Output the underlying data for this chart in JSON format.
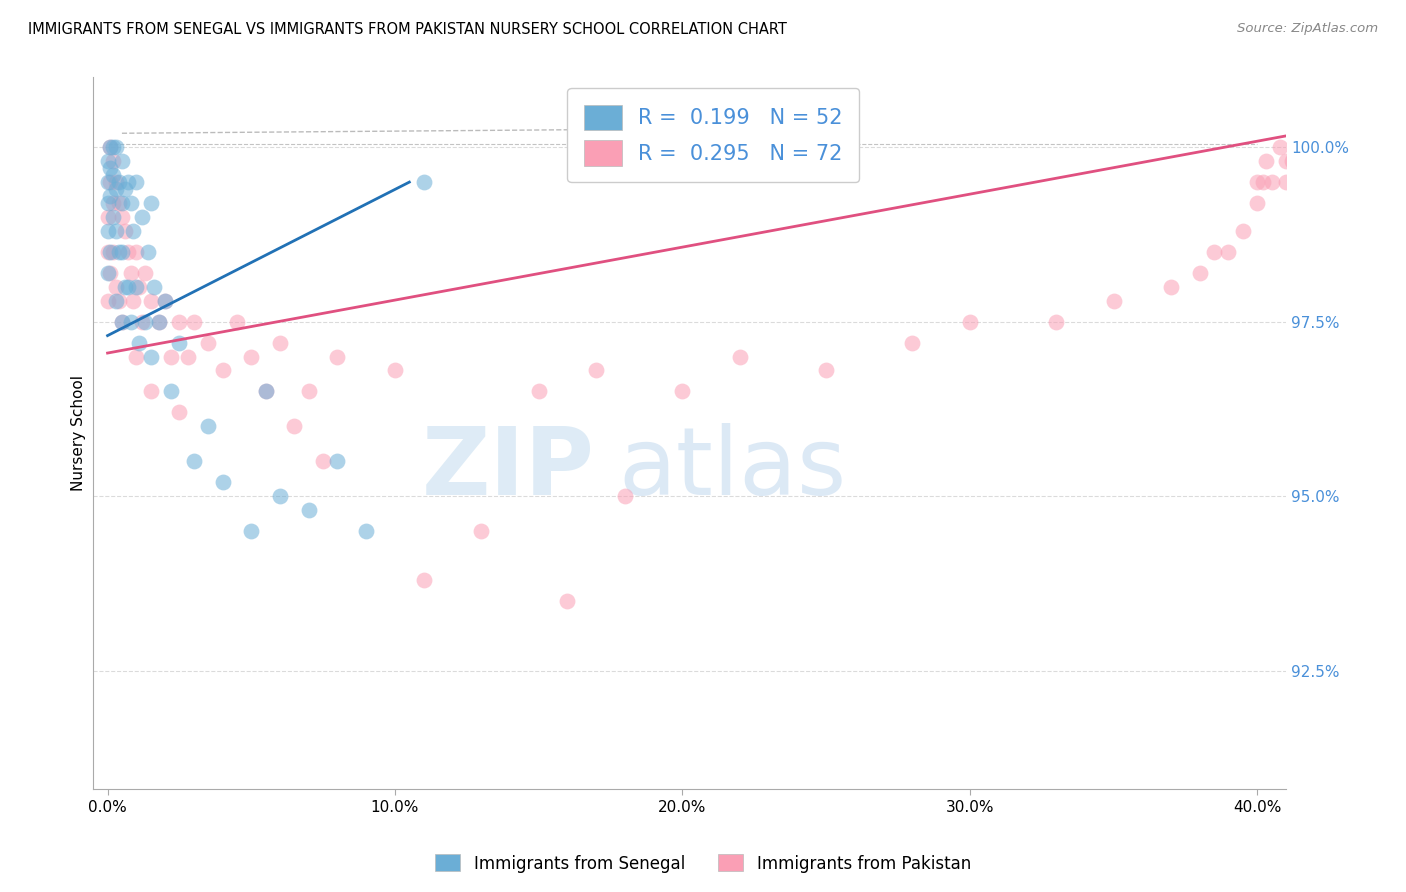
{
  "title": "IMMIGRANTS FROM SENEGAL VS IMMIGRANTS FROM PAKISTAN NURSERY SCHOOL CORRELATION CHART",
  "source": "Source: ZipAtlas.com",
  "ylabel": "Nursery School",
  "xlabel": "",
  "legend_label1": "Immigrants from Senegal",
  "legend_label2": "Immigrants from Pakistan",
  "R1": 0.199,
  "N1": 52,
  "R2": 0.295,
  "N2": 72,
  "color1": "#6baed6",
  "color2": "#fa9fb5",
  "line_color1": "#2171b5",
  "line_color2": "#e05080",
  "xlim": [
    -0.5,
    41.0
  ],
  "ylim": [
    90.8,
    101.0
  ],
  "yticks": [
    92.5,
    95.0,
    97.5,
    100.0
  ],
  "xticks": [
    0.0,
    10.0,
    20.0,
    30.0,
    40.0
  ],
  "watermark_zip": "ZIP",
  "watermark_atlas": "atlas",
  "senegal_x": [
    0.0,
    0.0,
    0.0,
    0.0,
    0.0,
    0.1,
    0.1,
    0.1,
    0.1,
    0.2,
    0.2,
    0.2,
    0.3,
    0.3,
    0.3,
    0.3,
    0.4,
    0.4,
    0.5,
    0.5,
    0.5,
    0.5,
    0.6,
    0.6,
    0.7,
    0.7,
    0.8,
    0.8,
    0.9,
    1.0,
    1.0,
    1.1,
    1.2,
    1.3,
    1.4,
    1.5,
    1.5,
    1.6,
    1.8,
    2.0,
    2.2,
    2.5,
    3.0,
    3.5,
    4.0,
    5.0,
    5.5,
    6.0,
    7.0,
    8.0,
    9.0,
    11.0
  ],
  "senegal_y": [
    99.8,
    99.5,
    99.2,
    98.8,
    98.2,
    100.0,
    99.7,
    99.3,
    98.5,
    100.0,
    99.6,
    99.0,
    100.0,
    99.4,
    98.8,
    97.8,
    99.5,
    98.5,
    99.8,
    99.2,
    98.5,
    97.5,
    99.4,
    98.0,
    99.5,
    98.0,
    99.2,
    97.5,
    98.8,
    99.5,
    98.0,
    97.2,
    99.0,
    97.5,
    98.5,
    99.2,
    97.0,
    98.0,
    97.5,
    97.8,
    96.5,
    97.2,
    95.5,
    96.0,
    95.2,
    94.5,
    96.5,
    95.0,
    94.8,
    95.5,
    94.5,
    99.5
  ],
  "pakistan_x": [
    0.0,
    0.0,
    0.0,
    0.1,
    0.1,
    0.1,
    0.2,
    0.2,
    0.2,
    0.3,
    0.3,
    0.4,
    0.4,
    0.5,
    0.5,
    0.6,
    0.7,
    0.8,
    0.9,
    1.0,
    1.0,
    1.1,
    1.2,
    1.3,
    1.5,
    1.5,
    1.8,
    2.0,
    2.2,
    2.5,
    2.5,
    2.8,
    3.0,
    3.5,
    4.0,
    4.5,
    5.0,
    5.5,
    6.0,
    6.5,
    7.0,
    7.5,
    8.0,
    10.0,
    11.0,
    13.0,
    15.0,
    16.0,
    17.0,
    18.0,
    20.0,
    22.0,
    25.0,
    28.0,
    30.0,
    33.0,
    35.0,
    37.0,
    38.0,
    38.5,
    39.0,
    39.5,
    40.0,
    40.0,
    40.2,
    40.3,
    40.5,
    40.8,
    41.0,
    41.0,
    41.2,
    41.5
  ],
  "pakistan_y": [
    99.0,
    98.5,
    97.8,
    100.0,
    99.5,
    98.2,
    99.8,
    99.2,
    98.5,
    99.5,
    98.0,
    99.2,
    97.8,
    99.0,
    97.5,
    98.8,
    98.5,
    98.2,
    97.8,
    98.5,
    97.0,
    98.0,
    97.5,
    98.2,
    97.8,
    96.5,
    97.5,
    97.8,
    97.0,
    97.5,
    96.2,
    97.0,
    97.5,
    97.2,
    96.8,
    97.5,
    97.0,
    96.5,
    97.2,
    96.0,
    96.5,
    95.5,
    97.0,
    96.8,
    93.8,
    94.5,
    96.5,
    93.5,
    96.8,
    95.0,
    96.5,
    97.0,
    96.8,
    97.2,
    97.5,
    97.5,
    97.8,
    98.0,
    98.2,
    98.5,
    98.5,
    98.8,
    99.2,
    99.5,
    99.5,
    99.8,
    99.5,
    100.0,
    99.8,
    99.5,
    99.8,
    99.5
  ]
}
